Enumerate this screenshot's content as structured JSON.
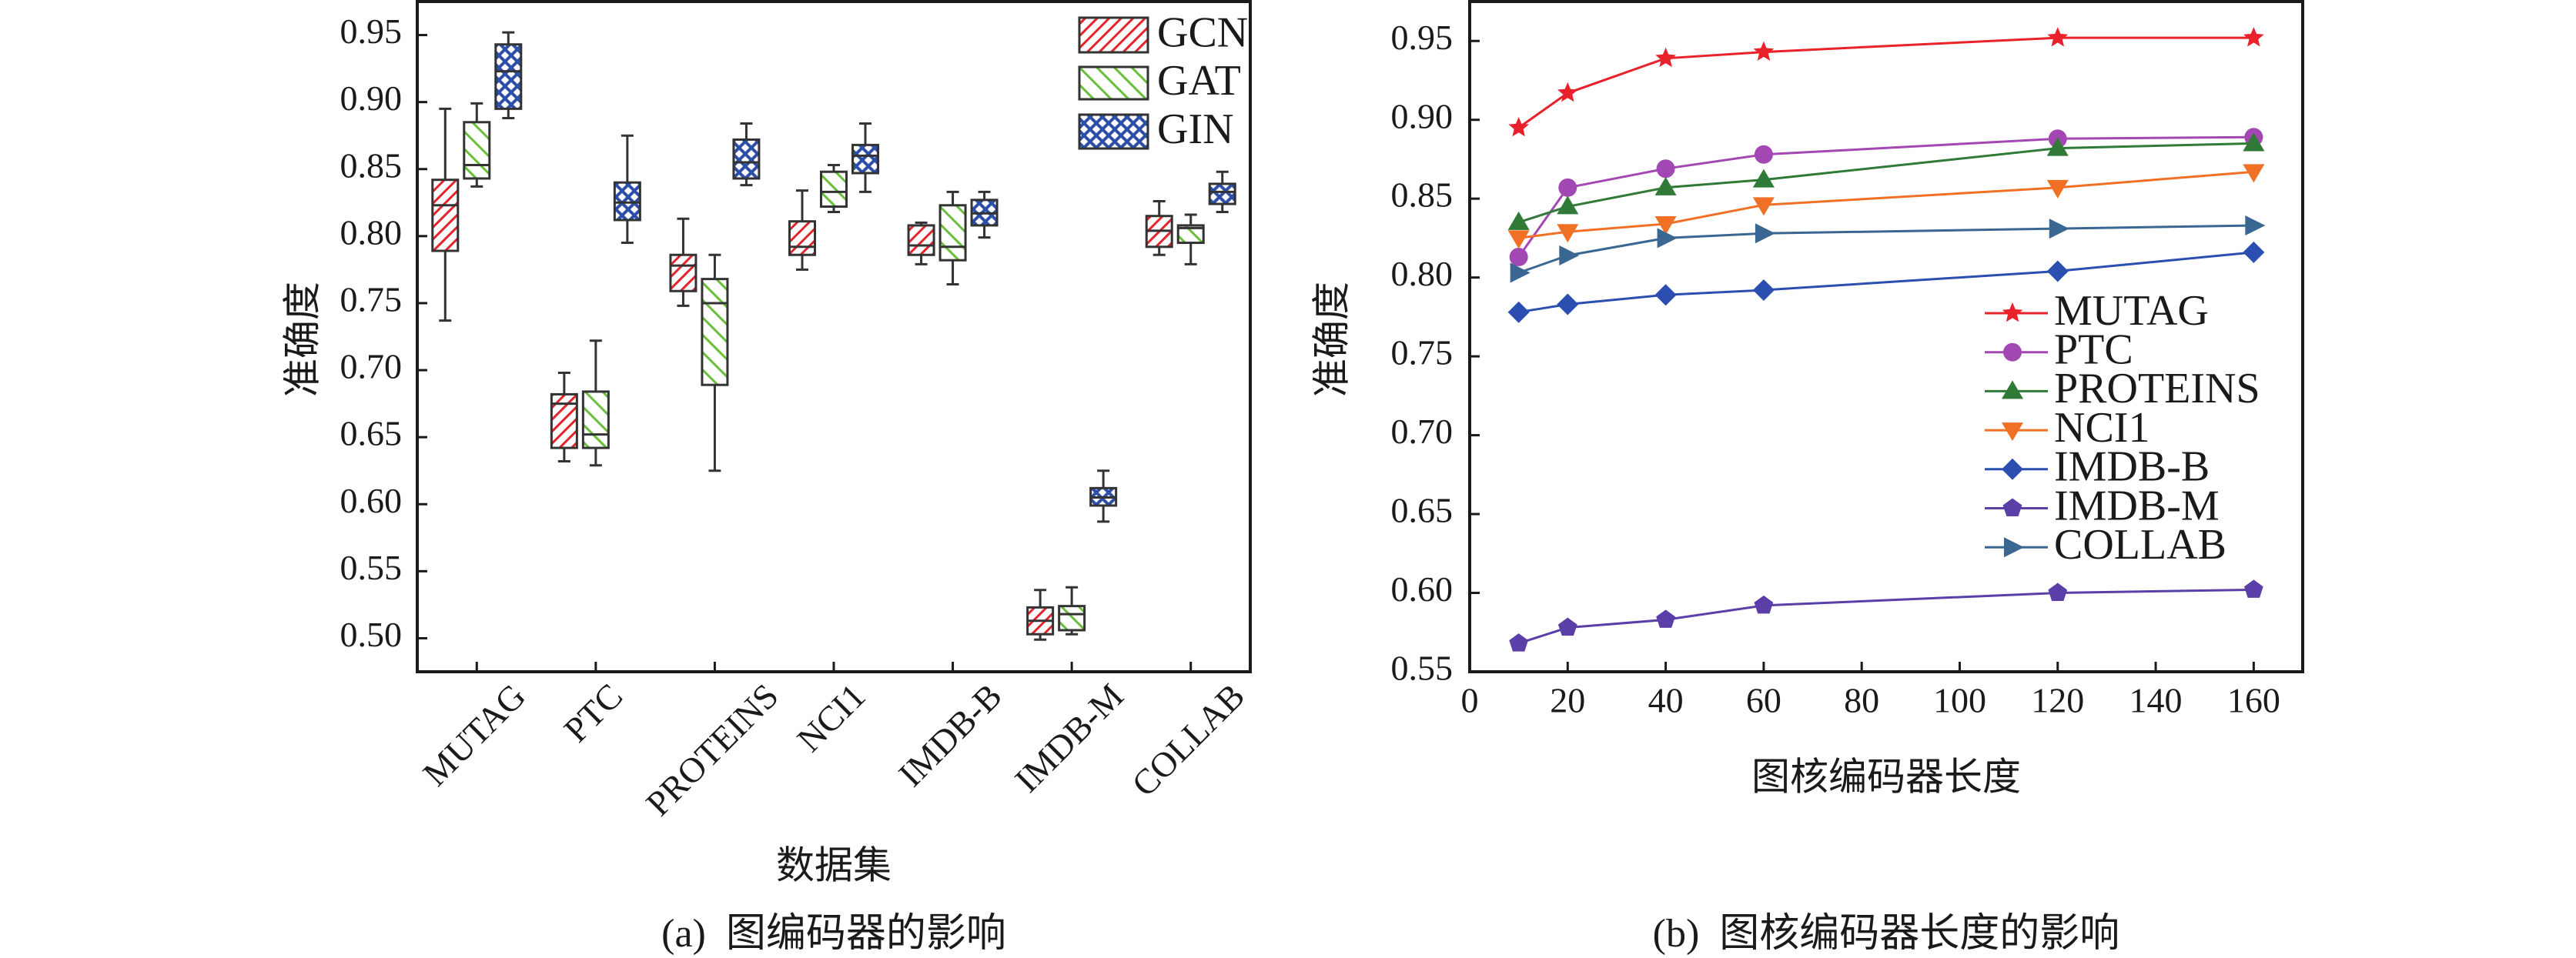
{
  "chart_data": [
    {
      "type": "box",
      "panel": "a",
      "caption": "(a)  图编码器的影响",
      "title": "",
      "xlabel": "数据集",
      "ylabel": "准确度",
      "ylim": [
        0.475,
        0.975
      ],
      "yticks": [
        "0.50",
        "0.55",
        "0.60",
        "0.65",
        "0.70",
        "0.75",
        "0.80",
        "0.85",
        "0.90",
        "0.95"
      ],
      "categories": [
        "MUTAG",
        "PTC",
        "PROTEINS",
        "NCI1",
        "IMDB-B",
        "IMDB-M",
        "COLLAB"
      ],
      "legend_position": "top-right",
      "series": [
        {
          "name": "GCN",
          "color": "#e3242b",
          "pattern": "diagonal-up",
          "boxes": [
            {
              "whisker_low": 0.737,
              "q1": 0.789,
              "median": 0.823,
              "q3": 0.842,
              "whisker_high": 0.895
            },
            {
              "whisker_low": 0.632,
              "q1": 0.642,
              "median": 0.675,
              "q3": 0.682,
              "whisker_high": 0.698
            },
            {
              "whisker_low": 0.748,
              "q1": 0.759,
              "median": 0.778,
              "q3": 0.786,
              "whisker_high": 0.813
            },
            {
              "whisker_low": 0.775,
              "q1": 0.786,
              "median": 0.792,
              "q3": 0.811,
              "whisker_high": 0.834
            },
            {
              "whisker_low": 0.779,
              "q1": 0.786,
              "median": 0.793,
              "q3": 0.808,
              "whisker_high": 0.81
            },
            {
              "whisker_low": 0.499,
              "q1": 0.503,
              "median": 0.513,
              "q3": 0.523,
              "whisker_high": 0.536
            },
            {
              "whisker_low": 0.786,
              "q1": 0.792,
              "median": 0.804,
              "q3": 0.815,
              "whisker_high": 0.826
            }
          ]
        },
        {
          "name": "GAT",
          "color": "#6abf3a",
          "pattern": "diagonal-down",
          "boxes": [
            {
              "whisker_low": 0.837,
              "q1": 0.843,
              "median": 0.853,
              "q3": 0.885,
              "whisker_high": 0.899
            },
            {
              "whisker_low": 0.629,
              "q1": 0.642,
              "median": 0.652,
              "q3": 0.684,
              "whisker_high": 0.722
            },
            {
              "whisker_low": 0.625,
              "q1": 0.689,
              "median": 0.75,
              "q3": 0.768,
              "whisker_high": 0.786
            },
            {
              "whisker_low": 0.818,
              "q1": 0.822,
              "median": 0.833,
              "q3": 0.848,
              "whisker_high": 0.853
            },
            {
              "whisker_low": 0.764,
              "q1": 0.782,
              "median": 0.792,
              "q3": 0.823,
              "whisker_high": 0.833
            },
            {
              "whisker_low": 0.503,
              "q1": 0.506,
              "median": 0.518,
              "q3": 0.524,
              "whisker_high": 0.538
            },
            {
              "whisker_low": 0.779,
              "q1": 0.795,
              "median": 0.806,
              "q3": 0.808,
              "whisker_high": 0.816
            }
          ]
        },
        {
          "name": "GIN",
          "color": "#2e4fa8",
          "pattern": "crosshatch",
          "boxes": [
            {
              "whisker_low": 0.888,
              "q1": 0.895,
              "median": 0.923,
              "q3": 0.943,
              "whisker_high": 0.952
            },
            {
              "whisker_low": 0.795,
              "q1": 0.812,
              "median": 0.825,
              "q3": 0.84,
              "whisker_high": 0.875
            },
            {
              "whisker_low": 0.838,
              "q1": 0.843,
              "median": 0.855,
              "q3": 0.872,
              "whisker_high": 0.884
            },
            {
              "whisker_low": 0.833,
              "q1": 0.847,
              "median": 0.86,
              "q3": 0.868,
              "whisker_high": 0.884
            },
            {
              "whisker_low": 0.799,
              "q1": 0.808,
              "median": 0.817,
              "q3": 0.827,
              "whisker_high": 0.833
            },
            {
              "whisker_low": 0.587,
              "q1": 0.599,
              "median": 0.605,
              "q3": 0.612,
              "whisker_high": 0.625
            },
            {
              "whisker_low": 0.818,
              "q1": 0.824,
              "median": 0.833,
              "q3": 0.839,
              "whisker_high": 0.848
            }
          ]
        }
      ]
    },
    {
      "type": "line",
      "panel": "b",
      "caption": "(b)  图核编码器长度的影响",
      "title": "",
      "xlabel": "图核编码器长度",
      "ylabel": "准确度",
      "xlim": [
        0,
        170
      ],
      "ylim": [
        0.55,
        0.975
      ],
      "xticks": [
        "0",
        "20",
        "40",
        "60",
        "80",
        "100",
        "120",
        "140",
        "160"
      ],
      "yticks": [
        "0.55",
        "0.60",
        "0.65",
        "0.70",
        "0.75",
        "0.80",
        "0.85",
        "0.90",
        "0.95"
      ],
      "x": [
        10,
        20,
        40,
        60,
        120,
        160
      ],
      "legend_position": "center-right",
      "series": [
        {
          "name": "MUTAG",
          "color": "#e8212a",
          "marker": "star",
          "values": [
            0.895,
            0.917,
            0.939,
            0.943,
            0.952,
            0.952
          ]
        },
        {
          "name": "PTC",
          "color": "#a348b3",
          "marker": "circle",
          "values": [
            0.813,
            0.857,
            0.869,
            0.878,
            0.888,
            0.889
          ]
        },
        {
          "name": "PROTEINS",
          "color": "#2f7a37",
          "marker": "triangle-up",
          "values": [
            0.835,
            0.845,
            0.857,
            0.862,
            0.882,
            0.885
          ]
        },
        {
          "name": "NCI1",
          "color": "#f07126",
          "marker": "triangle-down",
          "values": [
            0.825,
            0.829,
            0.834,
            0.846,
            0.857,
            0.867
          ]
        },
        {
          "name": "IMDB-B",
          "color": "#2a4fb0",
          "marker": "diamond",
          "values": [
            0.778,
            0.783,
            0.789,
            0.792,
            0.804,
            0.816
          ]
        },
        {
          "name": "IMDB-M",
          "color": "#5a3fa8",
          "marker": "pentagon",
          "values": [
            0.568,
            0.578,
            0.583,
            0.592,
            0.6,
            0.602
          ]
        },
        {
          "name": "COLLAB",
          "color": "#3a6791",
          "marker": "triangle-right",
          "values": [
            0.803,
            0.814,
            0.825,
            0.828,
            0.831,
            0.833
          ]
        }
      ]
    }
  ]
}
